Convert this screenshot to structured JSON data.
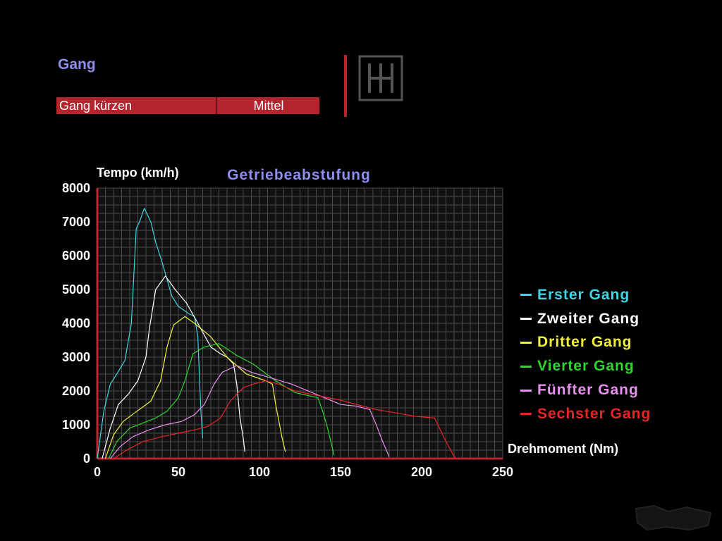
{
  "header": {
    "section_title": "Gang",
    "setting_label": "Gang kürzen",
    "setting_value": "Mittel",
    "icon": "h-pattern-gear-icon"
  },
  "colors": {
    "accent": "#b3242c",
    "title": "#8f8ff0"
  },
  "chart_data": {
    "type": "line",
    "title": "Getriebeabstufung",
    "xlabel": "Drehmoment (Nm)",
    "ylabel": "Tempo (km/h)",
    "xlim": [
      0,
      250
    ],
    "ylim": [
      0,
      8000
    ],
    "x_ticks": [
      0,
      50,
      100,
      150,
      200,
      250
    ],
    "y_ticks": [
      0,
      1000,
      2000,
      3000,
      4000,
      5000,
      6000,
      7000,
      8000
    ],
    "grid": true,
    "legend_position": "right",
    "series": [
      {
        "name": "Erster Gang",
        "color": "#3ed6e6",
        "x": [
          0,
          4,
          8,
          12,
          17,
          21,
          24,
          26,
          29,
          33,
          36,
          40,
          43,
          46,
          50,
          53,
          56,
          60,
          62,
          63,
          64,
          65
        ],
        "y": [
          0,
          1400,
          2200,
          2500,
          2900,
          4000,
          6800,
          7000,
          7400,
          7000,
          6400,
          5800,
          5300,
          4800,
          4500,
          4400,
          4300,
          4200,
          3600,
          2400,
          1300,
          600
        ]
      },
      {
        "name": "Zweiter Gang",
        "color": "#ffffff",
        "x": [
          3,
          8,
          13,
          19,
          25,
          30,
          32,
          36,
          42,
          48,
          55,
          62,
          70,
          76,
          80,
          84,
          86,
          88,
          90,
          91
        ],
        "y": [
          0,
          900,
          1600,
          1900,
          2300,
          3000,
          3800,
          5000,
          5400,
          5000,
          4600,
          4000,
          3300,
          3100,
          3000,
          2800,
          2200,
          1200,
          600,
          200
        ]
      },
      {
        "name": "Dritter Gang",
        "color": "#f2f23a",
        "x": [
          5,
          10,
          16,
          23,
          33,
          39,
          43,
          47,
          54,
          60,
          70,
          80,
          92,
          104,
          108,
          110,
          112,
          114,
          116
        ],
        "y": [
          0,
          700,
          1100,
          1350,
          1700,
          2300,
          3300,
          3950,
          4200,
          4000,
          3600,
          3000,
          2500,
          2300,
          2200,
          1600,
          1100,
          600,
          200
        ]
      },
      {
        "name": "Vierter Gang",
        "color": "#2ed62e",
        "x": [
          7,
          12,
          20,
          28,
          36,
          43,
          50,
          54,
          59,
          66,
          75,
          86,
          96,
          110,
          122,
          136,
          139,
          142,
          144,
          146
        ],
        "y": [
          0,
          500,
          900,
          1050,
          1200,
          1400,
          1800,
          2300,
          3100,
          3300,
          3400,
          3050,
          2800,
          2300,
          1950,
          1800,
          1400,
          900,
          500,
          100
        ]
      },
      {
        "name": "Fünfter Gang",
        "color": "#e88ff0",
        "x": [
          8,
          14,
          22,
          32,
          42,
          52,
          60,
          66,
          72,
          77,
          86,
          95,
          106,
          120,
          140,
          150,
          160,
          168,
          172,
          176,
          180
        ],
        "y": [
          0,
          350,
          650,
          850,
          1000,
          1100,
          1300,
          1600,
          2200,
          2550,
          2750,
          2550,
          2400,
          2200,
          1800,
          1600,
          1550,
          1450,
          1000,
          500,
          50
        ]
      },
      {
        "name": "Sechster Gang",
        "color": "#e62626",
        "x": [
          10,
          18,
          28,
          40,
          50,
          60,
          68,
          76,
          82,
          90,
          96,
          104,
          112,
          122,
          132,
          148,
          160,
          172,
          184,
          196,
          208,
          214,
          219,
          221
        ],
        "y": [
          0,
          250,
          500,
          650,
          750,
          850,
          950,
          1200,
          1700,
          2100,
          2200,
          2300,
          2200,
          2000,
          1900,
          1750,
          1600,
          1450,
          1350,
          1250,
          1200,
          600,
          150,
          0
        ]
      }
    ]
  }
}
